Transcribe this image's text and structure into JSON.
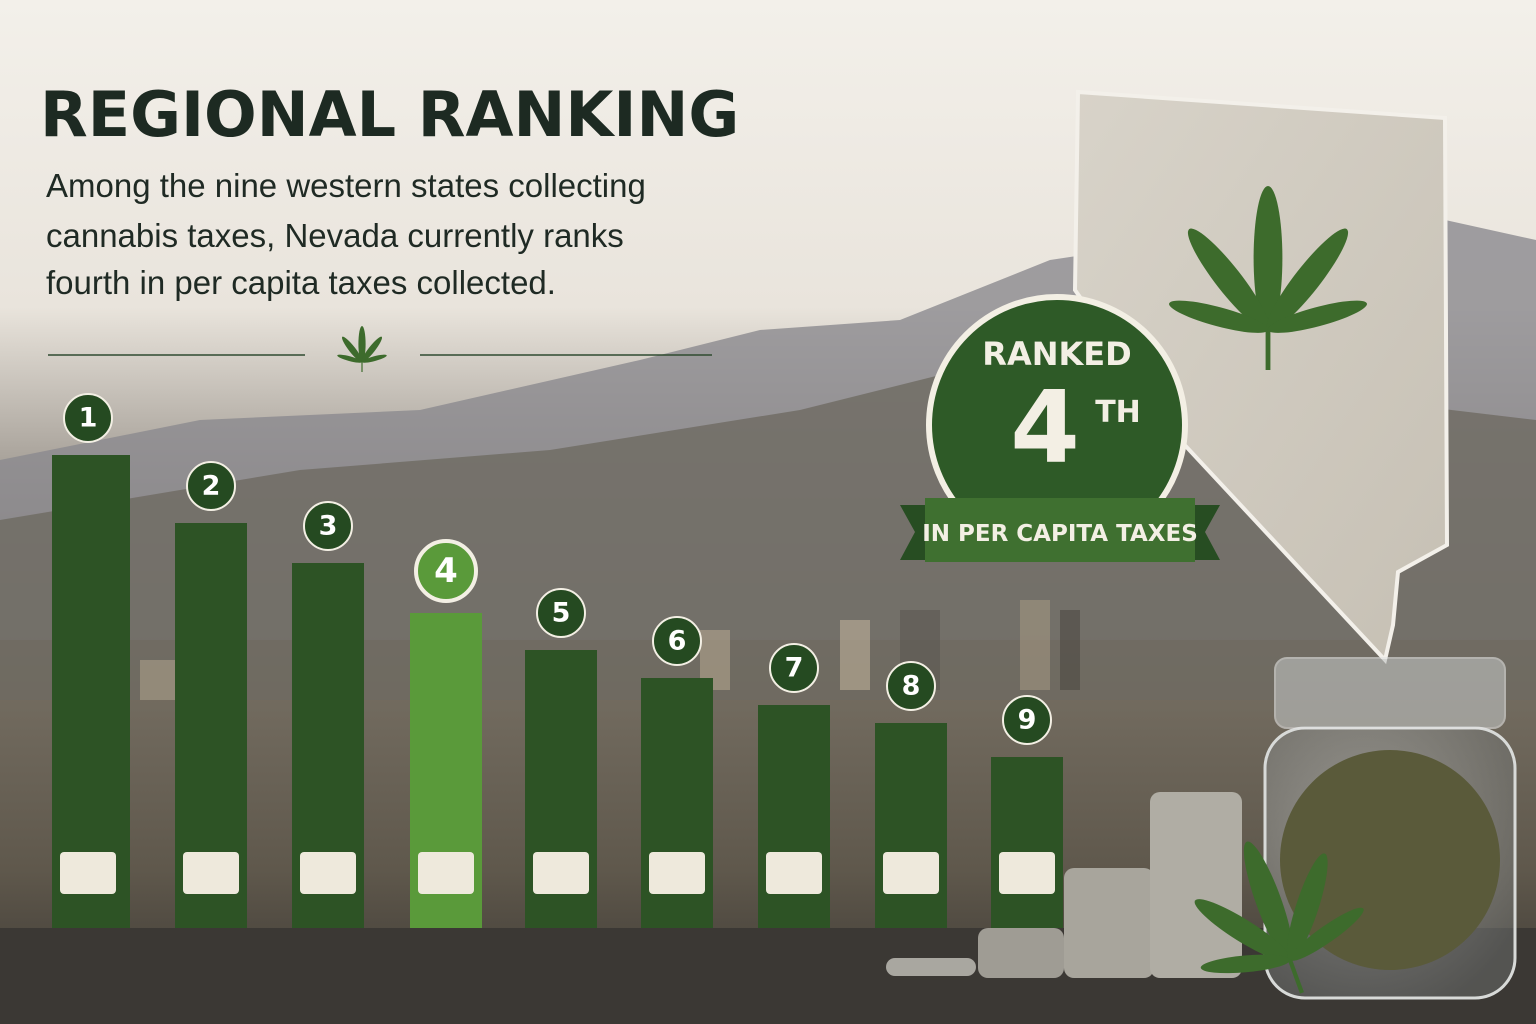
{
  "header": {
    "title": "REGIONAL RANKING",
    "description": [
      "Among the nine western states collecting",
      "cannabis taxes, Nevada currently ranks",
      "fourth in per capita taxes collected."
    ]
  },
  "ranking": {
    "ranks": [
      1,
      2,
      3,
      4,
      5,
      6,
      7,
      8,
      9
    ],
    "highlighted": 3
  },
  "badge": {
    "label": "RANKED",
    "rank": "4",
    "suffix": "TH",
    "ribbon": "IN PER CAPITA TAXES"
  }
}
